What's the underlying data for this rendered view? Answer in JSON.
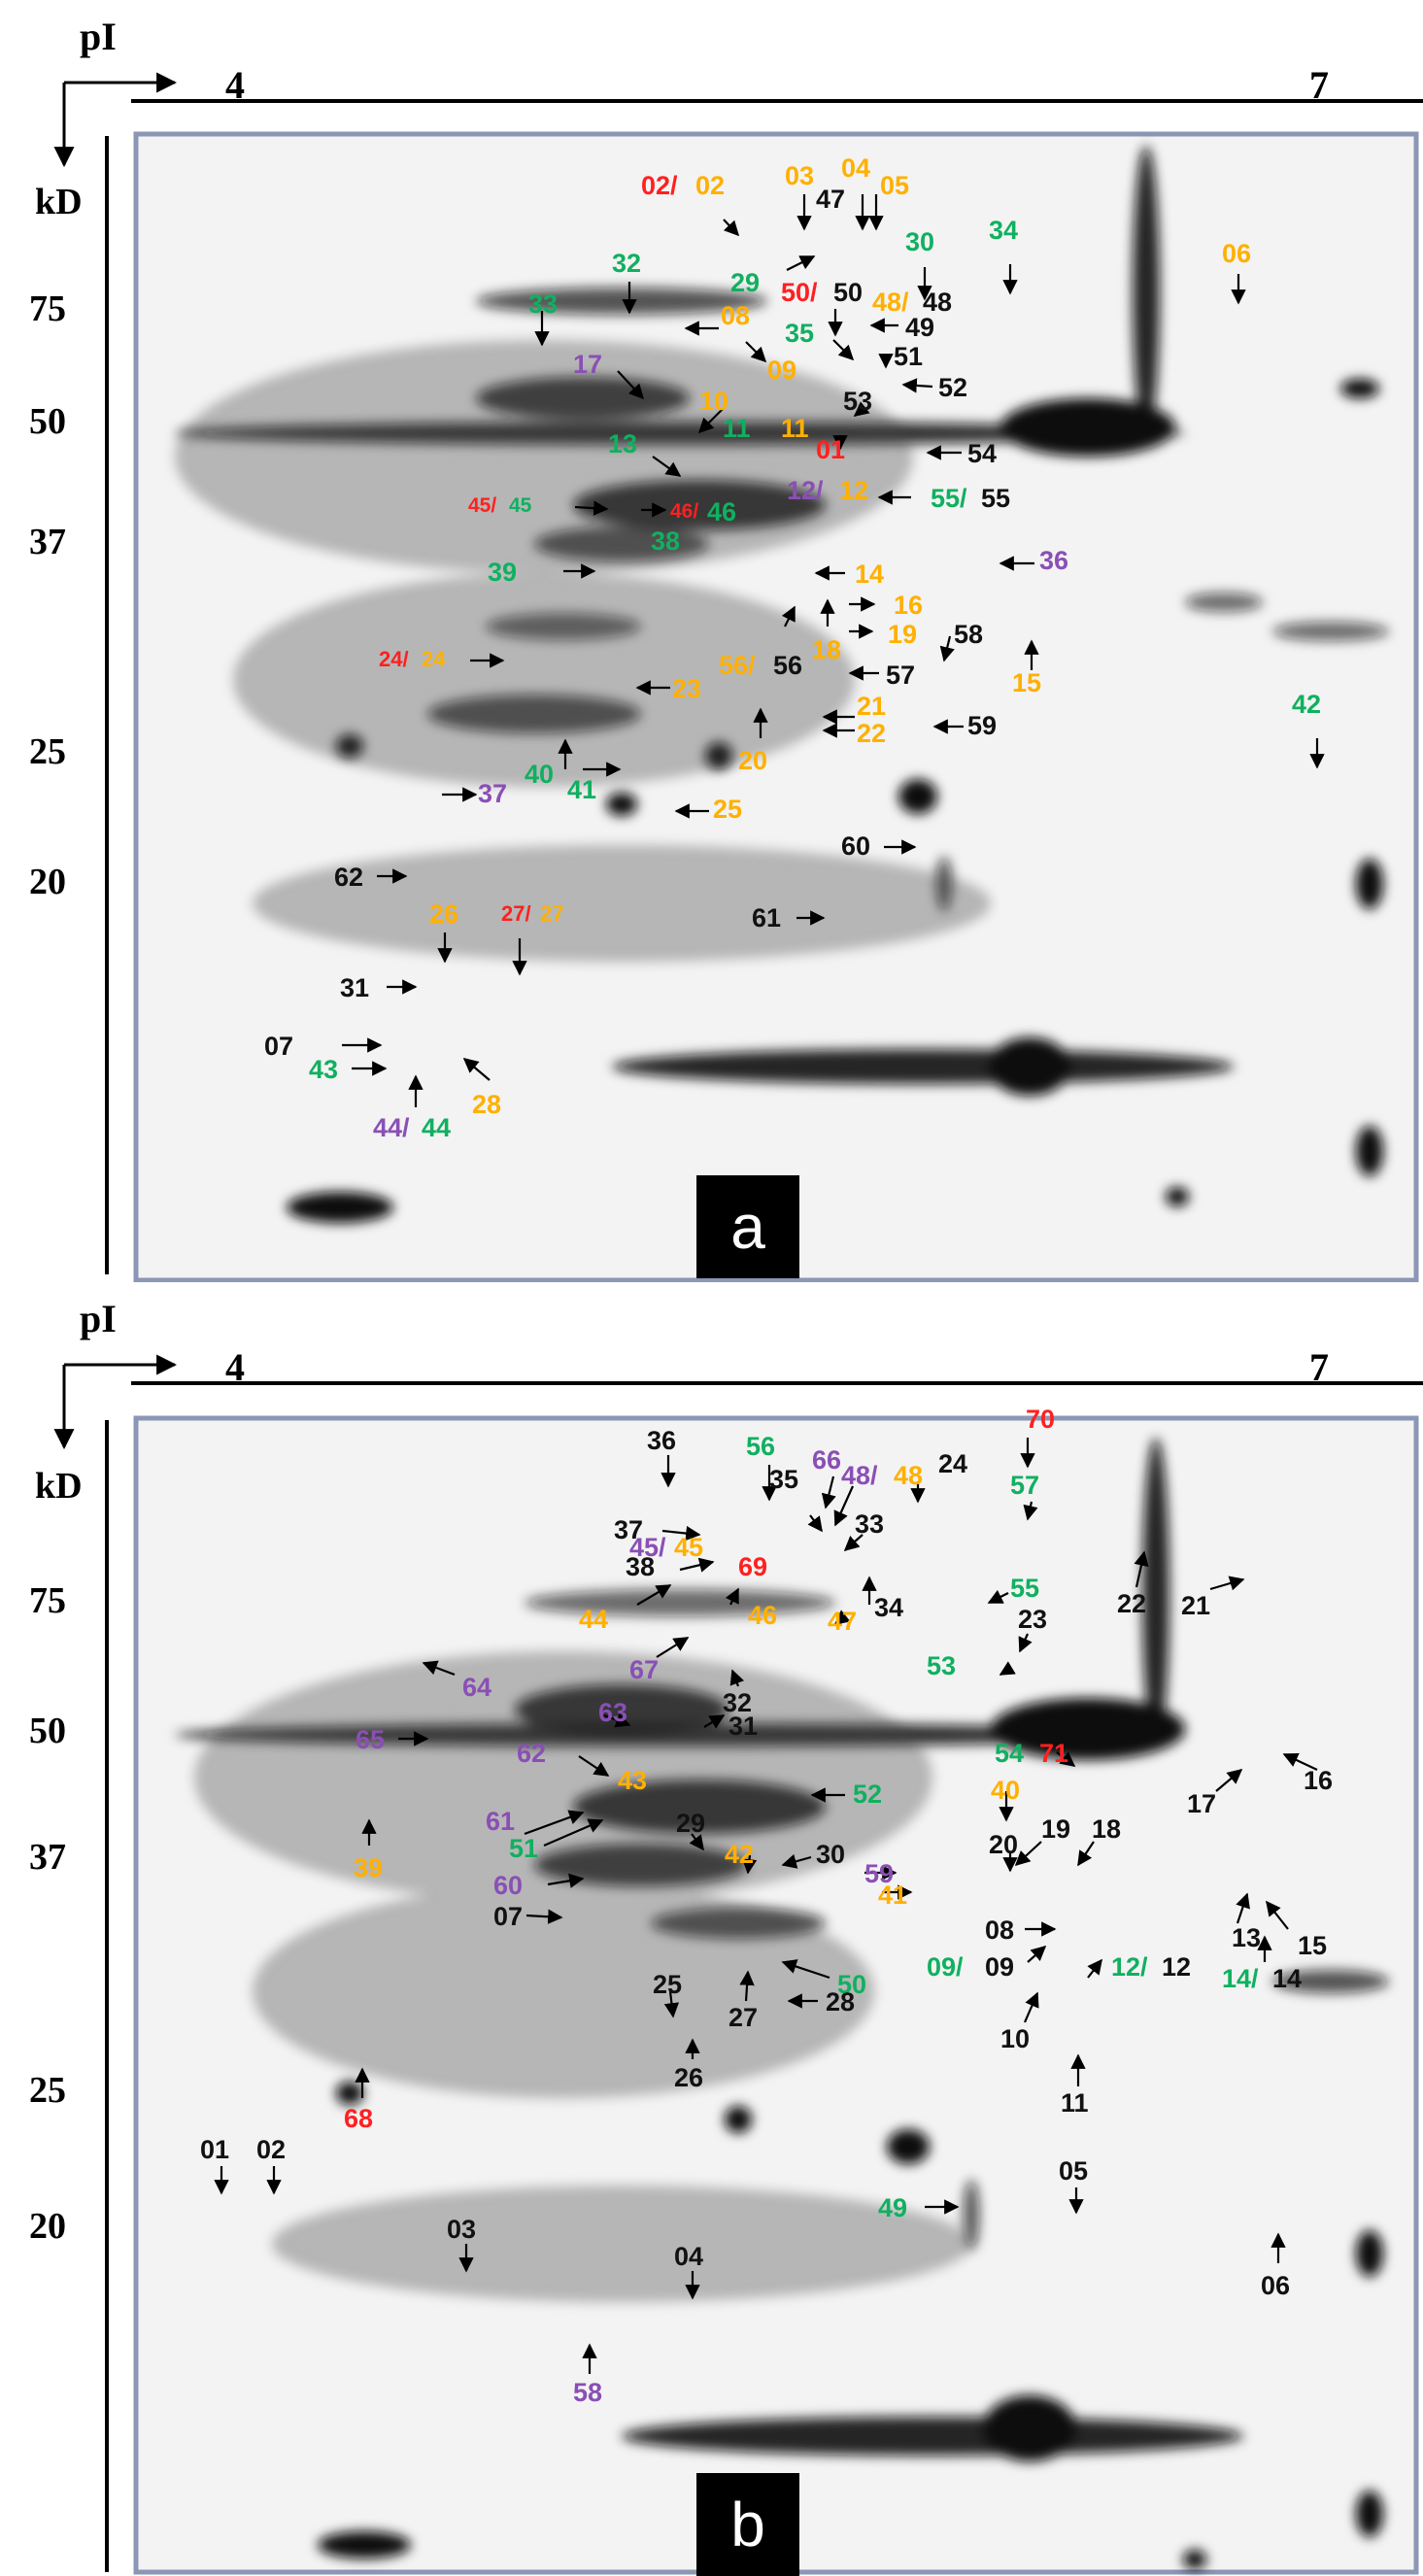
{
  "colors": {
    "black": "#111111",
    "red": "#ff2020",
    "orange": "#ffb000",
    "green": "#10b060",
    "purple": "#8a4fb5"
  },
  "panels": [
    {
      "letter": "a",
      "axis": {
        "pi_label": "pI",
        "kd_label": "kD",
        "pi_start": "4",
        "pi_end": "7"
      },
      "mw_markers": [
        "75",
        "50",
        "37",
        "25",
        "20"
      ],
      "spot_labels": [
        {
          "text": "02/",
          "color": "red"
        },
        {
          "text": "02",
          "color": "orange"
        },
        {
          "text": "03",
          "color": "orange"
        },
        {
          "text": "04",
          "color": "orange"
        },
        {
          "text": "05",
          "color": "orange"
        },
        {
          "text": "47",
          "color": "black"
        },
        {
          "text": "30",
          "color": "green"
        },
        {
          "text": "34",
          "color": "green"
        },
        {
          "text": "06",
          "color": "orange"
        },
        {
          "text": "32",
          "color": "green"
        },
        {
          "text": "29",
          "color": "green"
        },
        {
          "text": "50/",
          "color": "red"
        },
        {
          "text": "50",
          "color": "black"
        },
        {
          "text": "48/",
          "color": "orange"
        },
        {
          "text": "48",
          "color": "black"
        },
        {
          "text": "33",
          "color": "green"
        },
        {
          "text": "08",
          "color": "orange"
        },
        {
          "text": "35",
          "color": "green"
        },
        {
          "text": "49",
          "color": "black"
        },
        {
          "text": "09",
          "color": "orange"
        },
        {
          "text": "51",
          "color": "black"
        },
        {
          "text": "17",
          "color": "purple"
        },
        {
          "text": "52",
          "color": "black"
        },
        {
          "text": "53",
          "color": "black"
        },
        {
          "text": "10",
          "color": "orange"
        },
        {
          "text": "11",
          "color": "green"
        },
        {
          "text": "11",
          "color": "orange"
        },
        {
          "text": "13",
          "color": "green"
        },
        {
          "text": "01",
          "color": "red"
        },
        {
          "text": "54",
          "color": "black"
        },
        {
          "text": "12/",
          "color": "purple"
        },
        {
          "text": "12",
          "color": "orange"
        },
        {
          "text": "45/",
          "color": "red"
        },
        {
          "text": "45",
          "color": "green"
        },
        {
          "text": "46/",
          "color": "red"
        },
        {
          "text": "46",
          "color": "green"
        },
        {
          "text": "55/",
          "color": "green"
        },
        {
          "text": "55",
          "color": "black"
        },
        {
          "text": "38",
          "color": "green"
        },
        {
          "text": "36",
          "color": "purple"
        },
        {
          "text": "39",
          "color": "green"
        },
        {
          "text": "14",
          "color": "orange"
        },
        {
          "text": "16",
          "color": "orange"
        },
        {
          "text": "19",
          "color": "orange"
        },
        {
          "text": "58",
          "color": "black"
        },
        {
          "text": "18",
          "color": "orange"
        },
        {
          "text": "24/",
          "color": "red"
        },
        {
          "text": "24",
          "color": "orange"
        },
        {
          "text": "56/",
          "color": "orange"
        },
        {
          "text": "56",
          "color": "black"
        },
        {
          "text": "57",
          "color": "black"
        },
        {
          "text": "15",
          "color": "orange"
        },
        {
          "text": "23",
          "color": "orange"
        },
        {
          "text": "21",
          "color": "orange"
        },
        {
          "text": "59",
          "color": "black"
        },
        {
          "text": "22",
          "color": "orange"
        },
        {
          "text": "42",
          "color": "green"
        },
        {
          "text": "40",
          "color": "green"
        },
        {
          "text": "20",
          "color": "orange"
        },
        {
          "text": "41",
          "color": "green"
        },
        {
          "text": "37",
          "color": "purple"
        },
        {
          "text": "25",
          "color": "orange"
        },
        {
          "text": "60",
          "color": "black"
        },
        {
          "text": "62",
          "color": "black"
        },
        {
          "text": "26",
          "color": "orange"
        },
        {
          "text": "27/",
          "color": "red"
        },
        {
          "text": "27",
          "color": "orange"
        },
        {
          "text": "61",
          "color": "black"
        },
        {
          "text": "31",
          "color": "black"
        },
        {
          "text": "07",
          "color": "black"
        },
        {
          "text": "43",
          "color": "green"
        },
        {
          "text": "28",
          "color": "orange"
        },
        {
          "text": "44/",
          "color": "purple"
        },
        {
          "text": "44",
          "color": "green"
        }
      ]
    },
    {
      "letter": "b",
      "axis": {
        "pi_label": "pI",
        "kd_label": "kD",
        "pi_start": "4",
        "pi_end": "7"
      },
      "mw_markers": [
        "75",
        "50",
        "37",
        "25",
        "20"
      ],
      "spot_labels": [
        {
          "text": "70",
          "color": "red"
        },
        {
          "text": "36",
          "color": "black"
        },
        {
          "text": "56",
          "color": "green"
        },
        {
          "text": "66",
          "color": "purple"
        },
        {
          "text": "48/",
          "color": "purple"
        },
        {
          "text": "48",
          "color": "orange"
        },
        {
          "text": "24",
          "color": "black"
        },
        {
          "text": "57",
          "color": "green"
        },
        {
          "text": "35",
          "color": "black"
        },
        {
          "text": "37",
          "color": "black"
        },
        {
          "text": "45/",
          "color": "purple"
        },
        {
          "text": "45",
          "color": "orange"
        },
        {
          "text": "33",
          "color": "black"
        },
        {
          "text": "38",
          "color": "black"
        },
        {
          "text": "69",
          "color": "red"
        },
        {
          "text": "22",
          "color": "black"
        },
        {
          "text": "21",
          "color": "black"
        },
        {
          "text": "34",
          "color": "black"
        },
        {
          "text": "44",
          "color": "orange"
        },
        {
          "text": "46",
          "color": "orange"
        },
        {
          "text": "47",
          "color": "orange"
        },
        {
          "text": "55",
          "color": "green"
        },
        {
          "text": "23",
          "color": "black"
        },
        {
          "text": "64",
          "color": "purple"
        },
        {
          "text": "67",
          "color": "purple"
        },
        {
          "text": "53",
          "color": "green"
        },
        {
          "text": "32",
          "color": "black"
        },
        {
          "text": "63",
          "color": "purple"
        },
        {
          "text": "65",
          "color": "purple"
        },
        {
          "text": "31",
          "color": "black"
        },
        {
          "text": "62",
          "color": "purple"
        },
        {
          "text": "54",
          "color": "green"
        },
        {
          "text": "71",
          "color": "red"
        },
        {
          "text": "43",
          "color": "orange"
        },
        {
          "text": "52",
          "color": "green"
        },
        {
          "text": "40",
          "color": "orange"
        },
        {
          "text": "16",
          "color": "black"
        },
        {
          "text": "61",
          "color": "purple"
        },
        {
          "text": "17",
          "color": "black"
        },
        {
          "text": "51",
          "color": "green"
        },
        {
          "text": "29",
          "color": "black"
        },
        {
          "text": "19",
          "color": "black"
        },
        {
          "text": "18",
          "color": "black"
        },
        {
          "text": "39",
          "color": "orange"
        },
        {
          "text": "20",
          "color": "black"
        },
        {
          "text": "30",
          "color": "black"
        },
        {
          "text": "42",
          "color": "orange"
        },
        {
          "text": "60",
          "color": "purple"
        },
        {
          "text": "59",
          "color": "purple"
        },
        {
          "text": "41",
          "color": "orange"
        },
        {
          "text": "07",
          "color": "black"
        },
        {
          "text": "08",
          "color": "black"
        },
        {
          "text": "13",
          "color": "black"
        },
        {
          "text": "15",
          "color": "black"
        },
        {
          "text": "50",
          "color": "green"
        },
        {
          "text": "09/",
          "color": "green"
        },
        {
          "text": "09",
          "color": "black"
        },
        {
          "text": "12/",
          "color": "green"
        },
        {
          "text": "12",
          "color": "black"
        },
        {
          "text": "25",
          "color": "black"
        },
        {
          "text": "27",
          "color": "black"
        },
        {
          "text": "28",
          "color": "black"
        },
        {
          "text": "14/",
          "color": "green"
        },
        {
          "text": "14",
          "color": "black"
        },
        {
          "text": "10",
          "color": "black"
        },
        {
          "text": "26",
          "color": "black"
        },
        {
          "text": "11",
          "color": "black"
        },
        {
          "text": "68",
          "color": "red"
        },
        {
          "text": "01",
          "color": "black"
        },
        {
          "text": "02",
          "color": "black"
        },
        {
          "text": "49",
          "color": "green"
        },
        {
          "text": "05",
          "color": "black"
        },
        {
          "text": "03",
          "color": "black"
        },
        {
          "text": "04",
          "color": "black"
        },
        {
          "text": "06",
          "color": "black"
        },
        {
          "text": "58",
          "color": "purple"
        }
      ]
    }
  ]
}
